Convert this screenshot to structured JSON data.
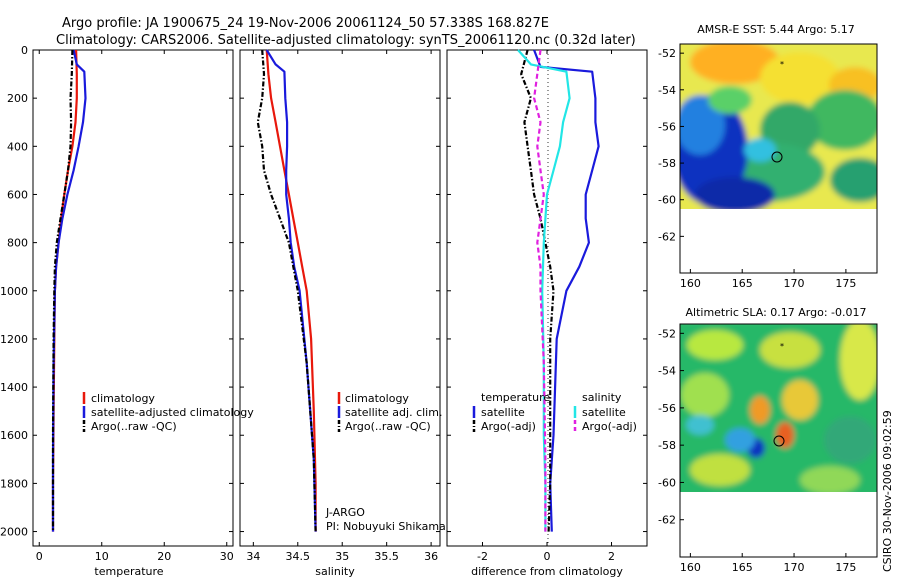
{
  "title_line1": "Argo profile: JA 1900675_24 19-Nov-2006 20061124_50 57.338S 168.827E",
  "title_line2": "Climatology: CARS2006. Satellite-adjusted climatology: synTS_20061120.nc (0.32d later)",
  "side_stamp": "CSIRO 30-Nov-2006 09:02:59",
  "colors": {
    "red": "#e8180c",
    "blue": "#1a1adc",
    "black": "#000000",
    "cyan": "#22e6e6",
    "magenta": "#e020e0"
  },
  "chart_data": [
    {
      "type": "line",
      "xlabel": "temperature",
      "xlim": [
        -1,
        31
      ],
      "ylim": [
        2060,
        0
      ],
      "xticks": [
        "0",
        "10",
        "20",
        "30"
      ],
      "yticks": [
        "0",
        "200",
        "400",
        "600",
        "800",
        "1000",
        "1200",
        "1400",
        "1600",
        "1800",
        "2000"
      ],
      "legend": {
        "placement": "bottom-right",
        "entries": [
          "climatology",
          "satellite-adjusted climatology",
          "Argo(..raw -QC)"
        ]
      },
      "series": [
        {
          "name": "climatology",
          "color": "red",
          "dash": "solid",
          "x": [
            5.9,
            6.0,
            6.0,
            5.8,
            5.3,
            4.6,
            4.0,
            3.5,
            3.1,
            2.7,
            2.5,
            2.4,
            2.3,
            2.2,
            2.2
          ],
          "y": [
            0,
            100,
            200,
            300,
            400,
            500,
            600,
            700,
            800,
            900,
            1000,
            1200,
            1500,
            1800,
            2000
          ]
        },
        {
          "name": "satellite-adjusted climatology",
          "color": "blue",
          "dash": "solid",
          "x": [
            5.5,
            6.0,
            7.2,
            7.4,
            7.0,
            6.3,
            5.5,
            4.5,
            3.7,
            3.1,
            2.7,
            2.5,
            2.3,
            2.2,
            2.2
          ],
          "y": [
            0,
            60,
            90,
            200,
            300,
            400,
            500,
            600,
            700,
            800,
            900,
            1000,
            1300,
            1700,
            2000
          ]
        },
        {
          "name": "Argo(..raw -QC)",
          "color": "black",
          "dash": "dashdot",
          "x": [
            5.3,
            5.2,
            5.0,
            5.1,
            5.0,
            4.6,
            4.0,
            3.4,
            2.8,
            2.5,
            2.4,
            2.3,
            2.2,
            2.2
          ],
          "y": [
            0,
            100,
            200,
            300,
            400,
            500,
            600,
            700,
            800,
            900,
            1000,
            1200,
            1600,
            2000
          ]
        }
      ]
    },
    {
      "type": "line",
      "xlabel": "salinity",
      "xlim": [
        33.85,
        36.1
      ],
      "ylim": [
        2060,
        0
      ],
      "xticks": [
        "34",
        "34.5",
        "35",
        "35.5",
        "36"
      ],
      "yticks": [],
      "legend": {
        "placement": "bottom-right",
        "entries": [
          "climatology",
          "satellite adj. clim.",
          "Argo(..raw -QC)"
        ]
      },
      "annotations": [
        "J-ARGO",
        "PI: Nobuyuki Shikama"
      ],
      "series": [
        {
          "name": "climatology",
          "color": "red",
          "dash": "solid",
          "x": [
            34.15,
            34.17,
            34.2,
            34.25,
            34.3,
            34.35,
            34.4,
            34.45,
            34.5,
            34.55,
            34.6,
            34.65,
            34.68,
            34.7,
            34.7
          ],
          "y": [
            0,
            100,
            200,
            300,
            400,
            500,
            600,
            700,
            800,
            900,
            1000,
            1200,
            1500,
            1800,
            2000
          ]
        },
        {
          "name": "satellite adj. clim.",
          "color": "blue",
          "dash": "solid",
          "x": [
            34.15,
            34.25,
            34.35,
            34.36,
            34.38,
            34.38,
            34.37,
            34.37,
            34.4,
            34.42,
            34.46,
            34.52,
            34.6,
            34.68,
            34.7
          ],
          "y": [
            0,
            60,
            90,
            200,
            300,
            400,
            500,
            600,
            700,
            800,
            900,
            1000,
            1300,
            1700,
            2000
          ]
        },
        {
          "name": "Argo(..raw -QC)",
          "color": "black",
          "dash": "dashdot",
          "x": [
            34.1,
            34.12,
            34.1,
            34.05,
            34.1,
            34.12,
            34.2,
            34.3,
            34.4,
            34.45,
            34.5,
            34.6,
            34.68,
            34.7
          ],
          "y": [
            0,
            100,
            200,
            300,
            400,
            500,
            600,
            700,
            800,
            900,
            1000,
            1300,
            1700,
            2000
          ]
        }
      ]
    },
    {
      "type": "line",
      "xlabel": "difference from climatology",
      "xticks": [
        "-2",
        "0",
        "2"
      ],
      "xlim": [
        -3.1,
        3.1
      ],
      "ylim": [
        2060,
        0
      ],
      "yticks": [],
      "legend": {
        "placement": "bottom-right",
        "temperature_header": "temperature",
        "salinity_header": "salinity",
        "entries": [
          "satellite",
          "Argo(-adj)",
          "satellite",
          "Argo(-adj)"
        ]
      },
      "series": [
        {
          "name": "satellite",
          "group": "temperature",
          "color": "blue",
          "dash": "solid",
          "x": [
            -0.4,
            -0.2,
            1.4,
            1.5,
            1.5,
            1.6,
            1.4,
            1.2,
            1.2,
            1.3,
            1.0,
            0.6,
            0.3,
            0.2,
            0.1,
            0.15
          ],
          "y": [
            0,
            70,
            90,
            200,
            300,
            400,
            500,
            600,
            700,
            800,
            900,
            1000,
            1200,
            1600,
            1800,
            2000
          ]
        },
        {
          "name": "Argo(-adj)",
          "group": "temperature",
          "color": "black",
          "dash": "dashdot",
          "x": [
            -0.6,
            -0.8,
            -0.5,
            -0.7,
            -0.6,
            -0.5,
            -0.4,
            -0.2,
            0.1,
            0.2,
            0.1,
            0.1,
            0.1,
            0.05
          ],
          "y": [
            0,
            100,
            200,
            300,
            400,
            500,
            600,
            700,
            900,
            1000,
            1200,
            1500,
            1800,
            2000
          ]
        },
        {
          "name": "satellite",
          "group": "salinity",
          "color": "cyan",
          "dash": "solid",
          "x": [
            -0.9,
            -0.5,
            0.6,
            0.7,
            0.5,
            0.4,
            0.2,
            0.0,
            -0.1,
            -0.15,
            -0.1,
            -0.1,
            -0.05,
            -0.05
          ],
          "y": [
            0,
            60,
            90,
            200,
            300,
            400,
            500,
            600,
            800,
            1000,
            1300,
            1600,
            1800,
            2000
          ]
        },
        {
          "name": "Argo(-adj)",
          "group": "salinity",
          "color": "magenta",
          "dash": "dashed",
          "x": [
            -0.2,
            -0.3,
            -0.4,
            -0.2,
            -0.3,
            -0.2,
            -0.1,
            -0.3,
            -0.2,
            -0.2,
            -0.1,
            -0.05,
            -0.05
          ],
          "y": [
            0,
            100,
            200,
            300,
            400,
            500,
            600,
            800,
            900,
            1000,
            1300,
            1700,
            2000
          ]
        }
      ]
    },
    {
      "type": "heatmap",
      "title": "AMSR-E SST: 5.44 Argo: 5.17",
      "xlim": [
        159,
        178
      ],
      "ylim": [
        -64,
        -51.5
      ],
      "xticks": [
        "160",
        "165",
        "170",
        "175"
      ],
      "yticks": [
        "-52",
        "-54",
        "-56",
        "-58",
        "-60",
        "-62"
      ]
    },
    {
      "type": "heatmap",
      "title": "Altimetric SLA: 0.17 Argo: -0.017",
      "xlim": [
        159,
        178
      ],
      "ylim": [
        -64,
        -51.5
      ],
      "xticks": [
        "160",
        "165",
        "170",
        "175"
      ],
      "yticks": [
        "-52",
        "-54",
        "-56",
        "-58",
        "-60",
        "-62"
      ]
    }
  ]
}
